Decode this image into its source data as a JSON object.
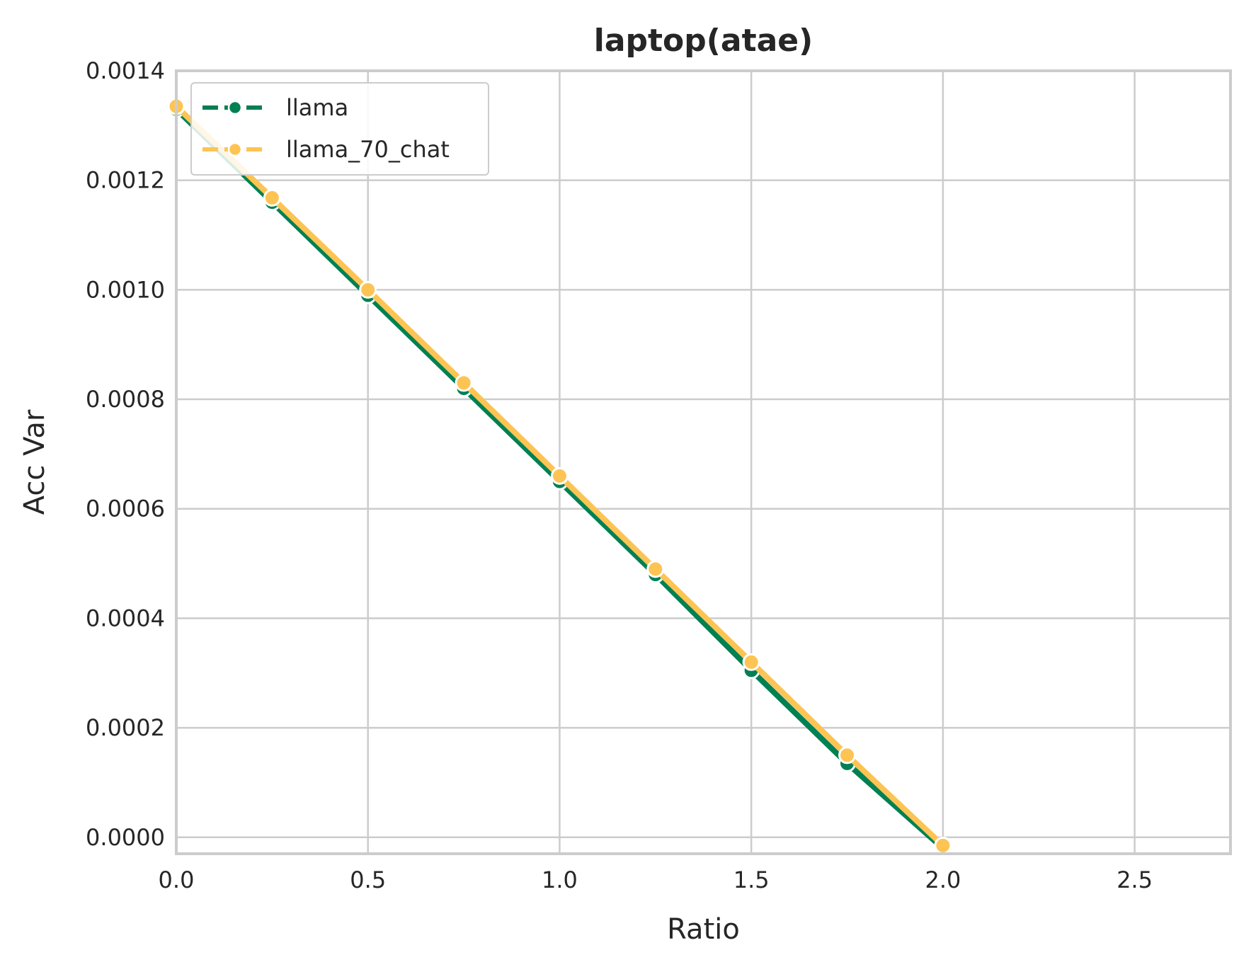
{
  "chart_data": {
    "type": "line",
    "title": "laptop(atae)",
    "xlabel": "Ratio",
    "ylabel": "Acc Var",
    "xlim": [
      0.0,
      2.75
    ],
    "ylim": [
      -3e-05,
      0.0014
    ],
    "x_ticks": [
      0.0,
      0.5,
      1.0,
      1.5,
      2.0,
      2.5
    ],
    "x_tick_labels": [
      "0.0",
      "0.5",
      "1.0",
      "1.5",
      "2.0",
      "2.5"
    ],
    "y_ticks": [
      0.0,
      0.0002,
      0.0004,
      0.0006,
      0.0008,
      0.001,
      0.0012,
      0.0014
    ],
    "y_tick_labels": [
      "0.0000",
      "0.0002",
      "0.0004",
      "0.0006",
      "0.0008",
      "0.0010",
      "0.0012",
      "0.0014"
    ],
    "grid": true,
    "legend_position": "top-left",
    "series": [
      {
        "name": "llama",
        "color": "#008053",
        "x": [
          0.0,
          0.25,
          0.5,
          0.75,
          1.0,
          1.25,
          1.5,
          1.75,
          2.0
        ],
        "y": [
          0.00133,
          0.00116,
          0.00099,
          0.00082,
          0.00065,
          0.00048,
          0.000305,
          0.000135,
          -2e-05
        ]
      },
      {
        "name": "llama_70_chat",
        "color": "#FDC454",
        "x": [
          0.0,
          0.25,
          0.5,
          0.75,
          1.0,
          1.25,
          1.5,
          1.75,
          2.0
        ],
        "y": [
          0.001335,
          0.001168,
          0.001,
          0.00083,
          0.00066,
          0.00049,
          0.00032,
          0.00015,
          -1.5e-05
        ]
      }
    ]
  }
}
